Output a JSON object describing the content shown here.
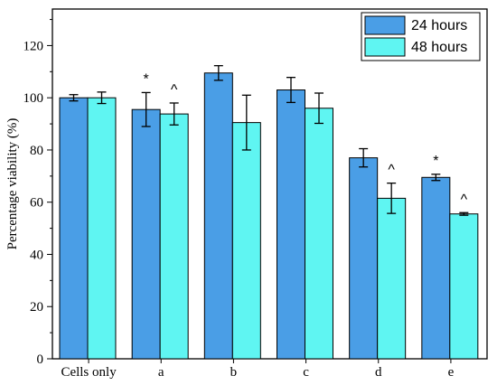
{
  "chart_data": {
    "type": "bar",
    "categories": [
      "Cells only",
      "a",
      "b",
      "c",
      "d",
      "e"
    ],
    "series": [
      {
        "name": "24 hours",
        "values": [
          100,
          95.5,
          109.5,
          103,
          77,
          69.5
        ],
        "errors": [
          1.2,
          6.5,
          2.8,
          4.8,
          3.5,
          1.2
        ],
        "annotations": [
          "",
          "*",
          "",
          "",
          "",
          "*"
        ],
        "color": "#4a9ee6"
      },
      {
        "name": "48 hours",
        "values": [
          100,
          93.8,
          90.5,
          96,
          61.5,
          55.5
        ],
        "errors": [
          2.2,
          4.2,
          10.5,
          5.8,
          5.8,
          0.5
        ],
        "annotations": [
          "",
          "^",
          "",
          "",
          "^",
          "^"
        ],
        "color": "#5ff5f2"
      }
    ],
    "title": "",
    "xlabel": "",
    "ylabel": "Percentage viability (%)",
    "ylim": [
      0,
      134
    ],
    "yticks": [
      0,
      20,
      40,
      60,
      80,
      100,
      120
    ],
    "grid": false,
    "legend_position": "top-right"
  }
}
